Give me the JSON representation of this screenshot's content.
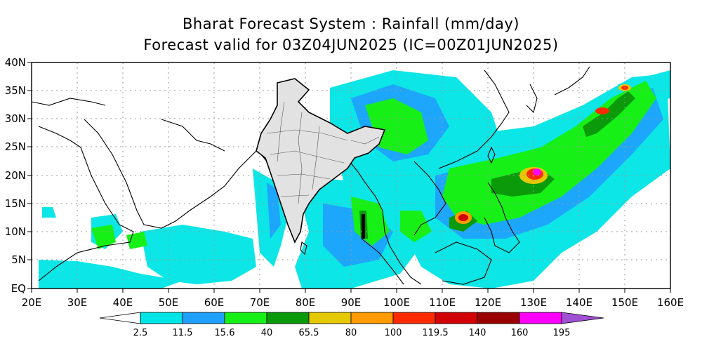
{
  "title_line1": "Bharat Forecast System : Rainfall (mm/day)",
  "title_line2": "Forecast valid for 03Z04JUN2025 (IC=00Z01JUN2025)",
  "map": {
    "lon_range": [
      20,
      160
    ],
    "lat_range": [
      0,
      40
    ],
    "lon_ticks": [
      "20E",
      "30E",
      "40E",
      "50E",
      "60E",
      "70E",
      "80E",
      "90E",
      "100E",
      "110E",
      "120E",
      "130E",
      "140E",
      "150E",
      "160E"
    ],
    "lat_ticks": [
      "EQ",
      "5N",
      "10N",
      "15N",
      "20N",
      "25N",
      "30N",
      "35N",
      "40N"
    ],
    "grid": "dotted"
  },
  "colorbar": {
    "labels": [
      "2.5",
      "11.5",
      "15.6",
      "40",
      "65.5",
      "80",
      "100",
      "119.5",
      "140",
      "160",
      "195"
    ],
    "colors": [
      "#ffffff",
      "#00e5e5",
      "#1ea0ff",
      "#16f016",
      "#0a9a0a",
      "#e6c800",
      "#ff9a00",
      "#ff2a00",
      "#d20000",
      "#9a0000",
      "#ff00ff",
      "#a050d2"
    ]
  }
}
